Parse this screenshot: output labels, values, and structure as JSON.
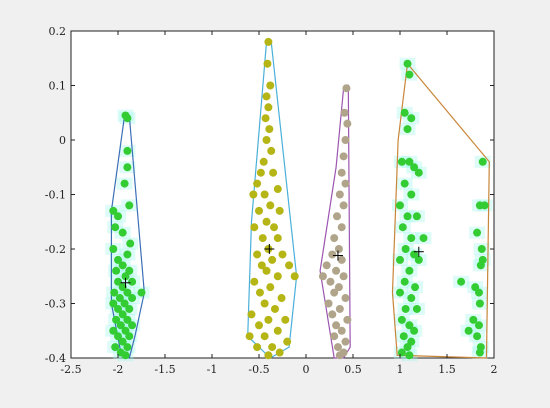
{
  "chart_data": {
    "type": "scatter",
    "xlim": [
      -2.5,
      2
    ],
    "ylim": [
      -0.4,
      0.2
    ],
    "x_ticks": [
      "-2.5",
      "-2",
      "-1.5",
      "-1",
      "-0.5",
      "0",
      "0.5",
      "1",
      "1.5",
      "2"
    ],
    "y_ticks": [
      "0.2",
      "0.1",
      "0",
      "-0.1",
      "-0.2",
      "-0.3",
      "-0.4"
    ],
    "grid": false,
    "series": [
      {
        "color": "#33cc33",
        "hull_color": "#3b6fb6",
        "centroid": [
          -1.92,
          -0.262
        ],
        "hull": [
          [
            -1.93,
            0.045
          ],
          [
            -1.88,
            0.045
          ],
          [
            -1.72,
            -0.28
          ],
          [
            -1.82,
            -0.36
          ],
          [
            -1.88,
            -0.4
          ],
          [
            -1.97,
            -0.39
          ],
          [
            -2.07,
            -0.3
          ],
          [
            -2.07,
            -0.13
          ]
        ],
        "points": [
          [
            -1.92,
            0.045
          ],
          [
            -1.9,
            0.04
          ],
          [
            -1.9,
            -0.02
          ],
          [
            -1.9,
            -0.05
          ],
          [
            -1.93,
            -0.08
          ],
          [
            -2.05,
            -0.13
          ],
          [
            -2.0,
            -0.14
          ],
          [
            -1.88,
            -0.12
          ],
          [
            -2.03,
            -0.16
          ],
          [
            -1.95,
            -0.17
          ],
          [
            -1.87,
            -0.19
          ],
          [
            -2.05,
            -0.2
          ],
          [
            -2.0,
            -0.22
          ],
          [
            -1.9,
            -0.21
          ],
          [
            -1.95,
            -0.23
          ],
          [
            -2.02,
            -0.24
          ],
          [
            -1.88,
            -0.24
          ],
          [
            -1.92,
            -0.25
          ],
          [
            -2.0,
            -0.26
          ],
          [
            -1.85,
            -0.26
          ],
          [
            -1.95,
            -0.27
          ],
          [
            -2.04,
            -0.28
          ],
          [
            -1.9,
            -0.28
          ],
          [
            -1.75,
            -0.28
          ],
          [
            -1.98,
            -0.29
          ],
          [
            -1.85,
            -0.29
          ],
          [
            -2.05,
            -0.3
          ],
          [
            -1.93,
            -0.3
          ],
          [
            -2.0,
            -0.31
          ],
          [
            -1.88,
            -0.31
          ],
          [
            -1.95,
            -0.32
          ],
          [
            -2.02,
            -0.33
          ],
          [
            -1.9,
            -0.33
          ],
          [
            -1.97,
            -0.34
          ],
          [
            -1.85,
            -0.34
          ],
          [
            -2.05,
            -0.35
          ],
          [
            -1.92,
            -0.35
          ],
          [
            -2.0,
            -0.36
          ],
          [
            -1.88,
            -0.36
          ],
          [
            -1.95,
            -0.37
          ],
          [
            -2.03,
            -0.38
          ],
          [
            -1.9,
            -0.38
          ],
          [
            -1.97,
            -0.39
          ],
          [
            -1.92,
            -0.395
          ]
        ]
      },
      {
        "color": "#b5b516",
        "hull_color": "#4ab0d9",
        "centroid": [
          -0.39,
          -0.2
        ],
        "hull": [
          [
            -0.42,
            0.18
          ],
          [
            -0.37,
            0.18
          ],
          [
            -0.1,
            -0.25
          ],
          [
            -0.18,
            -0.38
          ],
          [
            -0.38,
            -0.4
          ],
          [
            -0.62,
            -0.36
          ],
          [
            -0.58,
            -0.15
          ]
        ],
        "points": [
          [
            -0.4,
            0.18
          ],
          [
            -0.41,
            0.14
          ],
          [
            -0.38,
            0.1
          ],
          [
            -0.42,
            0.08
          ],
          [
            -0.4,
            0.06
          ],
          [
            -0.43,
            0.04
          ],
          [
            -0.39,
            0.02
          ],
          [
            -0.42,
            0.0
          ],
          [
            -0.37,
            -0.02
          ],
          [
            -0.45,
            -0.04
          ],
          [
            -0.48,
            -0.06
          ],
          [
            -0.35,
            -0.06
          ],
          [
            -0.52,
            -0.08
          ],
          [
            -0.3,
            -0.09
          ],
          [
            -0.44,
            -0.1
          ],
          [
            -0.56,
            -0.1
          ],
          [
            -0.38,
            -0.12
          ],
          [
            -0.5,
            -0.13
          ],
          [
            -0.28,
            -0.13
          ],
          [
            -0.42,
            -0.15
          ],
          [
            -0.34,
            -0.16
          ],
          [
            -0.55,
            -0.16
          ],
          [
            -0.46,
            -0.18
          ],
          [
            -0.3,
            -0.18
          ],
          [
            -0.4,
            -0.2
          ],
          [
            -0.52,
            -0.21
          ],
          [
            -0.25,
            -0.21
          ],
          [
            -0.36,
            -0.22
          ],
          [
            -0.47,
            -0.23
          ],
          [
            -0.18,
            -0.23
          ],
          [
            -0.42,
            -0.24
          ],
          [
            -0.3,
            -0.25
          ],
          [
            -0.55,
            -0.26
          ],
          [
            -0.12,
            -0.25
          ],
          [
            -0.38,
            -0.27
          ],
          [
            -0.49,
            -0.28
          ],
          [
            -0.26,
            -0.29
          ],
          [
            -0.44,
            -0.3
          ],
          [
            -0.33,
            -0.31
          ],
          [
            -0.58,
            -0.32
          ],
          [
            -0.4,
            -0.33
          ],
          [
            -0.22,
            -0.33
          ],
          [
            -0.5,
            -0.34
          ],
          [
            -0.3,
            -0.35
          ],
          [
            -0.6,
            -0.36
          ],
          [
            -0.44,
            -0.36
          ],
          [
            -0.2,
            -0.37
          ],
          [
            -0.36,
            -0.38
          ],
          [
            -0.52,
            -0.38
          ],
          [
            -0.28,
            -0.39
          ],
          [
            -0.4,
            -0.395
          ]
        ]
      },
      {
        "color": "#b0a58a",
        "hull_color": "#9c55b0",
        "centroid": [
          0.34,
          -0.212
        ],
        "hull": [
          [
            0.4,
            0.095
          ],
          [
            0.45,
            0.1
          ],
          [
            0.47,
            -0.38
          ],
          [
            0.4,
            -0.4
          ],
          [
            0.3,
            -0.4
          ],
          [
            0.15,
            -0.24
          ],
          [
            0.32,
            -0.05
          ]
        ],
        "points": [
          [
            0.43,
            0.095
          ],
          [
            0.41,
            0.05
          ],
          [
            0.44,
            0.03
          ],
          [
            0.42,
            0.0
          ],
          [
            0.4,
            -0.03
          ],
          [
            0.38,
            -0.06
          ],
          [
            0.42,
            -0.08
          ],
          [
            0.36,
            -0.1
          ],
          [
            0.4,
            -0.12
          ],
          [
            0.33,
            -0.14
          ],
          [
            0.38,
            -0.16
          ],
          [
            0.3,
            -0.18
          ],
          [
            0.35,
            -0.2
          ],
          [
            0.28,
            -0.21
          ],
          [
            0.38,
            -0.22
          ],
          [
            0.22,
            -0.23
          ],
          [
            0.32,
            -0.24
          ],
          [
            0.4,
            -0.25
          ],
          [
            0.26,
            -0.26
          ],
          [
            0.35,
            -0.27
          ],
          [
            0.18,
            -0.25
          ],
          [
            0.3,
            -0.28
          ],
          [
            0.42,
            -0.29
          ],
          [
            0.24,
            -0.3
          ],
          [
            0.36,
            -0.31
          ],
          [
            0.28,
            -0.32
          ],
          [
            0.44,
            -0.33
          ],
          [
            0.32,
            -0.34
          ],
          [
            0.38,
            -0.35
          ],
          [
            0.3,
            -0.36
          ],
          [
            0.42,
            -0.37
          ],
          [
            0.34,
            -0.38
          ],
          [
            0.4,
            -0.39
          ],
          [
            0.36,
            -0.395
          ]
        ]
      },
      {
        "color": "#33cc33",
        "hull_color": "#c8863a",
        "centroid": [
          1.2,
          -0.205
        ],
        "hull": [
          [
            1.08,
            0.14
          ],
          [
            1.95,
            -0.04
          ],
          [
            1.92,
            -0.4
          ],
          [
            0.97,
            -0.395
          ],
          [
            0.92,
            -0.28
          ],
          [
            0.98,
            0.0
          ]
        ],
        "points": [
          [
            1.08,
            0.14
          ],
          [
            1.1,
            0.12
          ],
          [
            1.05,
            0.05
          ],
          [
            1.12,
            0.04
          ],
          [
            1.08,
            0.02
          ],
          [
            1.02,
            -0.04
          ],
          [
            1.1,
            -0.04
          ],
          [
            1.15,
            -0.05
          ],
          [
            1.2,
            -0.06
          ],
          [
            1.05,
            -0.08
          ],
          [
            1.12,
            -0.1
          ],
          [
            1.0,
            -0.12
          ],
          [
            1.08,
            -0.14
          ],
          [
            1.18,
            -0.14
          ],
          [
            1.03,
            -0.16
          ],
          [
            1.12,
            -0.18
          ],
          [
            1.25,
            -0.18
          ],
          [
            1.06,
            -0.2
          ],
          [
            1.15,
            -0.21
          ],
          [
            1.0,
            -0.22
          ],
          [
            1.2,
            -0.22
          ],
          [
            1.1,
            -0.24
          ],
          [
            1.05,
            -0.26
          ],
          [
            1.16,
            -0.27
          ],
          [
            1.0,
            -0.28
          ],
          [
            1.12,
            -0.29
          ],
          [
            1.06,
            -0.31
          ],
          [
            1.18,
            -0.31
          ],
          [
            1.02,
            -0.33
          ],
          [
            1.1,
            -0.34
          ],
          [
            1.15,
            -0.35
          ],
          [
            1.04,
            -0.36
          ],
          [
            1.12,
            -0.37
          ],
          [
            1.08,
            -0.38
          ],
          [
            1.02,
            -0.39
          ],
          [
            1.1,
            -0.395
          ],
          [
            1.88,
            -0.04
          ],
          [
            1.85,
            -0.12
          ],
          [
            1.9,
            -0.12
          ],
          [
            1.82,
            -0.17
          ],
          [
            1.87,
            -0.2
          ],
          [
            1.88,
            -0.22
          ],
          [
            1.86,
            -0.23
          ],
          [
            1.65,
            -0.26
          ],
          [
            1.8,
            -0.27
          ],
          [
            1.84,
            -0.28
          ],
          [
            1.85,
            -0.3
          ],
          [
            1.78,
            -0.33
          ],
          [
            1.84,
            -0.34
          ],
          [
            1.73,
            -0.35
          ],
          [
            1.82,
            -0.36
          ],
          [
            1.86,
            -0.38
          ],
          [
            1.85,
            -0.39
          ]
        ]
      }
    ]
  }
}
